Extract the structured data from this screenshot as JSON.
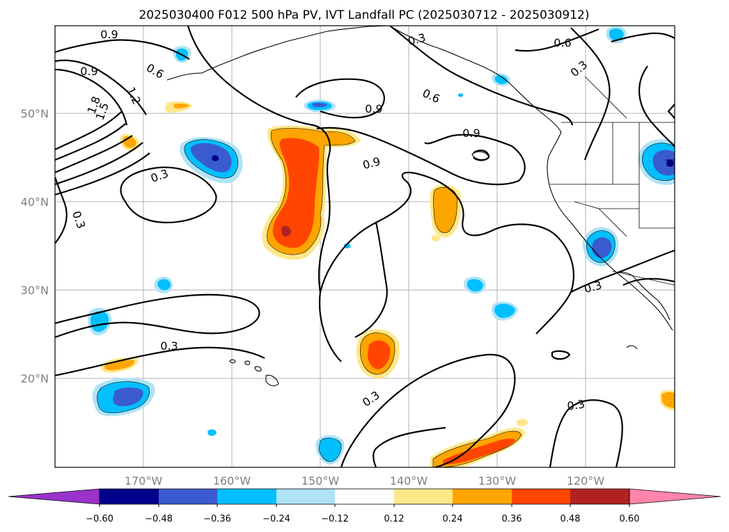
{
  "title": "2025030400 F012 500 hPa PV, IVT Landfall PC (2025030712 - 2025030912)",
  "lon_labels": [
    "170°W",
    "160°W",
    "150°W",
    "140°W",
    "130°W",
    "120°W"
  ],
  "lat_labels": [
    "50°N",
    "40°N",
    "30°N",
    "20°N"
  ],
  "contour_labels": {
    "c09_nw": "0.9",
    "c09_w": "0.9",
    "c06_w": "0.6",
    "c12": "1.2",
    "c15": "1.5",
    "c18": "1.8",
    "c03_top": "0.3",
    "c06_ne": "0.6",
    "c03_ne": "0.3",
    "c06_mid": "0.6",
    "c09_mid": "0.9",
    "c09_east": "0.9",
    "c09_mid2": "0.9",
    "c03_w": "0.3",
    "c03_left": "0.3",
    "c03_sw": "0.3",
    "c03_s": "0.3",
    "c03_se": "0.3",
    "c03_e": "0.3"
  },
  "colorbar": {
    "tick_labels": [
      "−0.60",
      "−0.48",
      "−0.36",
      "−0.24",
      "−0.12",
      "0.12",
      "0.24",
      "0.36",
      "0.48",
      "0.60"
    ],
    "colors": [
      "#9933cc",
      "#00008b",
      "#3a5bcf",
      "#00bfff",
      "#aee3f7",
      "#ffffff",
      "#ffe88a",
      "#ffa500",
      "#ff4500",
      "#b22222",
      "#ff85aa"
    ]
  },
  "shading_colors": {
    "neg1": "#aee3f7",
    "neg2": "#00bfff",
    "neg3": "#3a5bcf",
    "neg4": "#00008b",
    "pos1": "#ffe88a",
    "pos2": "#ffa500",
    "pos3": "#ff4500",
    "pos4": "#b22222"
  }
}
